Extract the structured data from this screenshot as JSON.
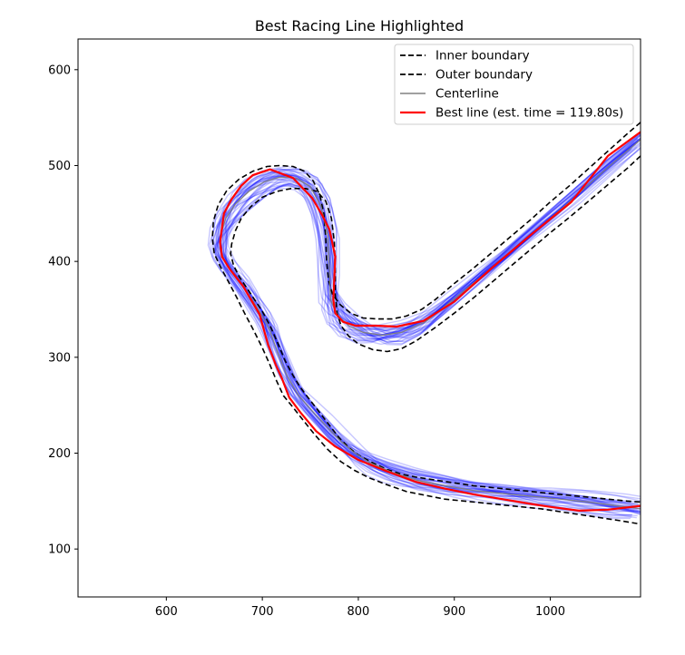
{
  "chart_data": {
    "type": "line",
    "title": "Best Racing Line Highlighted",
    "xlabel": "",
    "ylabel": "",
    "xlim": [
      508,
      1094
    ],
    "ylim": [
      50,
      632
    ],
    "xticks": [
      600,
      700,
      800,
      900,
      1000
    ],
    "yticks": [
      100,
      200,
      300,
      400,
      500,
      600
    ],
    "grid": false,
    "legend_position": "top-right",
    "colors": {
      "boundary": "#000000",
      "centerline": "#808080",
      "best_line": "#ff0000",
      "candidates": "#0000ff"
    },
    "legend": [
      {
        "label": "Inner boundary",
        "style": "dashed",
        "color": "#000000"
      },
      {
        "label": "Outer boundary",
        "style": "dashed",
        "color": "#000000"
      },
      {
        "label": "Centerline",
        "style": "solid",
        "color": "#808080"
      },
      {
        "label": "Best line (est. time = 119.80s)",
        "style": "solid-thick",
        "color": "#ff0000"
      }
    ],
    "series": [
      {
        "name": "Inner boundary",
        "x": [
          1094,
          1080,
          1060,
          1040,
          1020,
          1000,
          980,
          960,
          940,
          920,
          900,
          880,
          860,
          845,
          830,
          815,
          800,
          790,
          782,
          778,
          776,
          776,
          775,
          772,
          766,
          757,
          745,
          730,
          715,
          700,
          688,
          678,
          672,
          668,
          667,
          670,
          676,
          684,
          692,
          700,
          708,
          716,
          724,
          732,
          740,
          750,
          760,
          770,
          780,
          790,
          800,
          815,
          830,
          845,
          860,
          880,
          900,
          920,
          940,
          960,
          980,
          1000,
          1020,
          1040,
          1060,
          1080,
          1094
        ],
        "y": [
          510,
          497,
          480,
          463,
          446,
          430,
          413,
          396,
          379,
          362,
          346,
          331,
          317,
          309,
          306,
          308,
          314,
          322,
          333,
          346,
          365,
          390,
          420,
          445,
          463,
          473,
          476,
          476,
          473,
          467,
          457,
          445,
          432,
          418,
          408,
          396,
          384,
          372,
          360,
          348,
          333,
          315,
          296,
          281,
          268,
          255,
          242,
          229,
          216,
          206,
          198,
          190,
          183,
          178,
          175,
          172,
          169,
          166,
          164,
          162,
          160,
          158,
          156,
          154,
          152,
          150,
          149
        ]
      },
      {
        "name": "Outer boundary",
        "x": [
          1094,
          1080,
          1060,
          1040,
          1020,
          1000,
          980,
          960,
          940,
          920,
          900,
          880,
          866,
          850,
          835,
          820,
          805,
          792,
          781,
          773,
          769,
          767,
          766,
          764,
          760,
          753,
          744,
          732,
          718,
          705,
          690,
          676,
          663,
          654,
          649,
          648,
          650,
          656,
          664,
          673,
          682,
          691,
          700,
          708,
          715,
          722,
          731,
          742,
          754,
          768,
          782,
          796,
          812,
          830,
          850,
          870,
          890,
          910,
          930,
          950,
          970,
          990,
          1010,
          1030,
          1050,
          1070,
          1094
        ],
        "y": [
          545,
          533,
          515,
          497,
          479,
          462,
          444,
          427,
          410,
          393,
          377,
          360,
          350,
          343,
          340,
          340,
          341,
          346,
          355,
          366,
          380,
          400,
          425,
          450,
          469,
          484,
          494,
          499,
          500,
          499,
          494,
          486,
          474,
          459,
          442,
          424,
          408,
          395,
          380,
          363,
          345,
          328,
          310,
          292,
          275,
          260,
          249,
          235,
          220,
          204,
          191,
          182,
          174,
          167,
          160,
          156,
          152,
          150,
          148,
          146,
          144,
          142,
          139,
          136,
          133,
          130,
          126
        ]
      },
      {
        "name": "Centerline",
        "x": [
          1094,
          1060,
          1020,
          980,
          940,
          900,
          870,
          845,
          825,
          805,
          790,
          778,
          771,
          770,
          768,
          761,
          750,
          735,
          718,
          702,
          686,
          672,
          662,
          657,
          656,
          660,
          668,
          678,
          688,
          698,
          707,
          716,
          726,
          738,
          752,
          766,
          780,
          795,
          812,
          835,
          860,
          890,
          920,
          950,
          980,
          1010,
          1040,
          1070,
          1094
        ],
        "y": [
          527,
          498,
          462,
          428,
          394,
          361,
          337,
          326,
          323,
          326,
          333,
          344,
          360,
          390,
          428,
          458,
          478,
          487,
          488,
          483,
          473,
          460,
          445,
          429,
          414,
          402,
          390,
          377,
          362,
          346,
          330,
          305,
          280,
          260,
          244,
          229,
          214,
          201,
          190,
          180,
          172,
          166,
          161,
          158,
          155,
          152,
          149,
          145,
          142
        ]
      },
      {
        "name": "Best line (est. time = 119.80s)",
        "x": [
          1094,
          1060,
          1022,
          980,
          940,
          900,
          868,
          840,
          818,
          797,
          784,
          776,
          774,
          776,
          770,
          762,
          752,
          732,
          708,
          690,
          678,
          668,
          660,
          656,
          658,
          666,
          680,
          697,
          706,
          714,
          720,
          728,
          740,
          756,
          776,
          800,
          830,
          860,
          890,
          920,
          950,
          980,
          1000,
          1030,
          1060,
          1094
        ],
        "y": [
          535,
          510,
          462,
          428,
          394,
          358,
          338,
          332,
          333,
          333,
          337,
          346,
          360,
          405,
          433,
          449,
          466,
          487,
          496,
          490,
          479,
          465,
          450,
          420,
          405,
          392,
          374,
          345,
          313,
          292,
          279,
          258,
          242,
          223,
          207,
          193,
          181,
          170,
          163,
          157,
          152,
          147,
          144,
          140,
          141,
          145
        ]
      }
    ]
  }
}
